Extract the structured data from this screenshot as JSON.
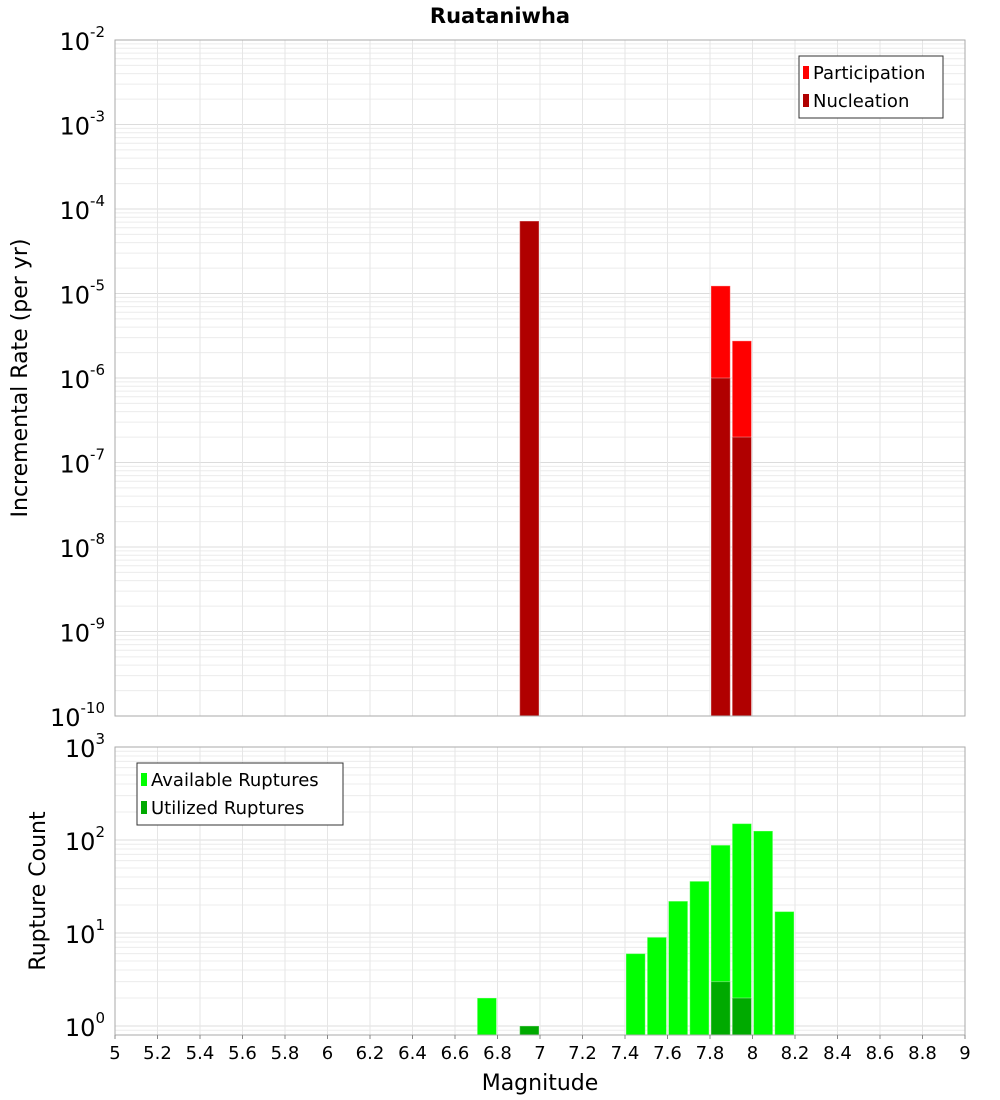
{
  "chart_data": [
    {
      "type": "bar",
      "title": "Ruataniwha",
      "xlabel": "Magnitude",
      "ylabel": "Incremental Rate (per yr)",
      "yscale": "log",
      "xlim": [
        5,
        9
      ],
      "ylim": [
        1e-10,
        0.01
      ],
      "ytick_exponents": [
        -10,
        -9,
        -8,
        -7,
        -6,
        -5,
        -4,
        -3,
        -2
      ],
      "bin_width": 0.1,
      "grid": true,
      "legend_position": "top-right",
      "series": [
        {
          "name": "Participation",
          "color": "#ff0000",
          "x": [
            6.95,
            7.85,
            7.95
          ],
          "values": [
            7.2e-05,
            1.23e-05,
            2.75e-06
          ]
        },
        {
          "name": "Nucleation",
          "color": "#b00000",
          "x": [
            6.95,
            7.85,
            7.95
          ],
          "values": [
            7.2e-05,
            1e-06,
            2e-07
          ]
        }
      ]
    },
    {
      "type": "bar",
      "xlabel": "Magnitude",
      "ylabel": "Rupture Count",
      "yscale": "log",
      "xlim": [
        5,
        9
      ],
      "ylim": [
        0.8,
        1000
      ],
      "ytick_exponents": [
        0,
        1,
        2,
        3
      ],
      "xticks": [
        "5",
        "5.2",
        "5.4",
        "5.6",
        "5.8",
        "6",
        "6.2",
        "6.4",
        "6.6",
        "6.8",
        "7",
        "7.2",
        "7.4",
        "7.6",
        "7.8",
        "8",
        "8.2",
        "8.4",
        "8.6",
        "8.8",
        "9"
      ],
      "bin_width": 0.1,
      "grid": true,
      "legend_position": "top-left",
      "series": [
        {
          "name": "Available Ruptures",
          "color": "#00ff00",
          "x": [
            6.75,
            6.95,
            7.45,
            7.55,
            7.65,
            7.75,
            7.85,
            7.95,
            8.05,
            8.15
          ],
          "values": [
            2,
            1,
            6,
            9,
            22,
            36,
            88,
            150,
            125,
            17
          ]
        },
        {
          "name": "Utilized Ruptures",
          "color": "#00aa00",
          "x": [
            6.95,
            7.85,
            7.95
          ],
          "values": [
            1,
            3,
            2
          ]
        }
      ]
    }
  ]
}
